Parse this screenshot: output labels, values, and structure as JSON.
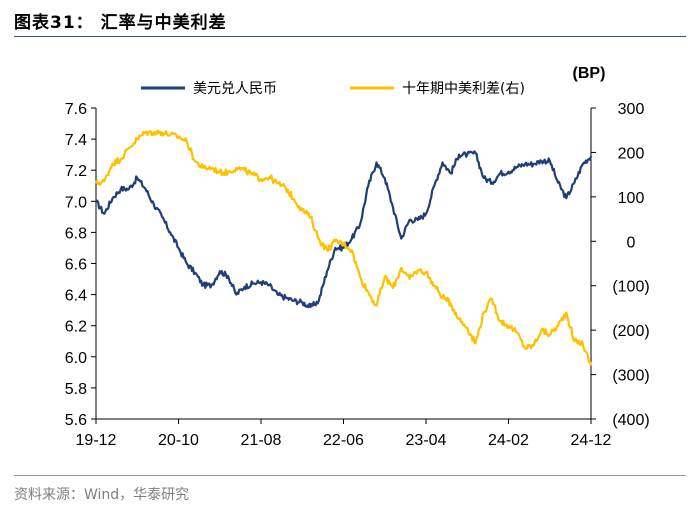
{
  "figure": {
    "title": "图表31：  汇率与中美利差",
    "source": "资料来源：Wind，华泰研究"
  },
  "chart_data": {
    "type": "line",
    "x_tick_labels": [
      "19-12",
      "20-10",
      "21-08",
      "22-06",
      "23-04",
      "24-02",
      "24-12"
    ],
    "x_range": [
      "2019-12",
      "2024-12"
    ],
    "y_left": {
      "range": [
        5.6,
        7.6
      ],
      "ticks": [
        "7.6",
        "7.4",
        "7.2",
        "7.0",
        "6.8",
        "6.6",
        "6.4",
        "6.2",
        "6.0",
        "5.8",
        "5.6"
      ]
    },
    "y_right": {
      "range": [
        -400,
        300
      ],
      "unit_label": "(BP)",
      "ticks": [
        "300",
        "200",
        "100",
        "0",
        "(100)",
        "(200)",
        "(300)",
        "(400)"
      ]
    },
    "legend_position": "top",
    "series": [
      {
        "name": "美元兑人民币",
        "axis": "left",
        "color": "#1f3f77",
        "points": [
          [
            "2019-12",
            7.0
          ],
          [
            "2020-01",
            6.92
          ],
          [
            "2020-02",
            7.02
          ],
          [
            "2020-03",
            7.08
          ],
          [
            "2020-04",
            7.08
          ],
          [
            "2020-05",
            7.15
          ],
          [
            "2020-06",
            7.08
          ],
          [
            "2020-07",
            6.98
          ],
          [
            "2020-08",
            6.9
          ],
          [
            "2020-09",
            6.8
          ],
          [
            "2020-10",
            6.7
          ],
          [
            "2020-11",
            6.6
          ],
          [
            "2020-12",
            6.54
          ],
          [
            "2021-01",
            6.46
          ],
          [
            "2021-02",
            6.46
          ],
          [
            "2021-03",
            6.55
          ],
          [
            "2021-04",
            6.52
          ],
          [
            "2021-05",
            6.4
          ],
          [
            "2021-06",
            6.45
          ],
          [
            "2021-07",
            6.47
          ],
          [
            "2021-08",
            6.48
          ],
          [
            "2021-09",
            6.46
          ],
          [
            "2021-10",
            6.4
          ],
          [
            "2021-11",
            6.38
          ],
          [
            "2021-12",
            6.36
          ],
          [
            "2022-01",
            6.35
          ],
          [
            "2022-02",
            6.32
          ],
          [
            "2022-03",
            6.36
          ],
          [
            "2022-04",
            6.55
          ],
          [
            "2022-05",
            6.7
          ],
          [
            "2022-06",
            6.7
          ],
          [
            "2022-07",
            6.76
          ],
          [
            "2022-08",
            6.85
          ],
          [
            "2022-09",
            7.1
          ],
          [
            "2022-10",
            7.25
          ],
          [
            "2022-11",
            7.15
          ],
          [
            "2022-12",
            6.96
          ],
          [
            "2023-01",
            6.76
          ],
          [
            "2023-02",
            6.88
          ],
          [
            "2023-03",
            6.88
          ],
          [
            "2023-04",
            6.92
          ],
          [
            "2023-05",
            7.1
          ],
          [
            "2023-06",
            7.25
          ],
          [
            "2023-07",
            7.18
          ],
          [
            "2023-08",
            7.3
          ],
          [
            "2023-09",
            7.3
          ],
          [
            "2023-10",
            7.31
          ],
          [
            "2023-11",
            7.15
          ],
          [
            "2023-12",
            7.12
          ],
          [
            "2024-01",
            7.18
          ],
          [
            "2024-02",
            7.19
          ],
          [
            "2024-03",
            7.22
          ],
          [
            "2024-04",
            7.24
          ],
          [
            "2024-05",
            7.24
          ],
          [
            "2024-06",
            7.26
          ],
          [
            "2024-07",
            7.26
          ],
          [
            "2024-08",
            7.12
          ],
          [
            "2024-09",
            7.02
          ],
          [
            "2024-10",
            7.12
          ],
          [
            "2024-11",
            7.24
          ],
          [
            "2024-12",
            7.29
          ]
        ]
      },
      {
        "name": "十年期中美利差(右)",
        "axis": "right",
        "color": "#ffc000",
        "points": [
          [
            "2019-12",
            130
          ],
          [
            "2020-01",
            135
          ],
          [
            "2020-02",
            175
          ],
          [
            "2020-03",
            185
          ],
          [
            "2020-04",
            210
          ],
          [
            "2020-05",
            230
          ],
          [
            "2020-06",
            245
          ],
          [
            "2020-07",
            245
          ],
          [
            "2020-08",
            245
          ],
          [
            "2020-09",
            240
          ],
          [
            "2020-10",
            235
          ],
          [
            "2020-11",
            225
          ],
          [
            "2020-12",
            180
          ],
          [
            "2021-01",
            165
          ],
          [
            "2021-02",
            165
          ],
          [
            "2021-03",
            155
          ],
          [
            "2021-04",
            155
          ],
          [
            "2021-05",
            165
          ],
          [
            "2021-06",
            160
          ],
          [
            "2021-07",
            150
          ],
          [
            "2021-08",
            140
          ],
          [
            "2021-09",
            145
          ],
          [
            "2021-10",
            130
          ],
          [
            "2021-11",
            120
          ],
          [
            "2021-12",
            95
          ],
          [
            "2022-01",
            70
          ],
          [
            "2022-02",
            55
          ],
          [
            "2022-03",
            5
          ],
          [
            "2022-04",
            -20
          ],
          [
            "2022-05",
            0
          ],
          [
            "2022-06",
            -5
          ],
          [
            "2022-07",
            -20
          ],
          [
            "2022-08",
            -80
          ],
          [
            "2022-09",
            -115
          ],
          [
            "2022-10",
            -145
          ],
          [
            "2022-11",
            -80
          ],
          [
            "2022-12",
            -105
          ],
          [
            "2023-01",
            -60
          ],
          [
            "2023-02",
            -85
          ],
          [
            "2023-03",
            -65
          ],
          [
            "2023-04",
            -70
          ],
          [
            "2023-05",
            -100
          ],
          [
            "2023-06",
            -125
          ],
          [
            "2023-07",
            -140
          ],
          [
            "2023-08",
            -175
          ],
          [
            "2023-09",
            -195
          ],
          [
            "2023-10",
            -230
          ],
          [
            "2023-11",
            -160
          ],
          [
            "2023-12",
            -130
          ],
          [
            "2024-01",
            -180
          ],
          [
            "2024-02",
            -190
          ],
          [
            "2024-03",
            -205
          ],
          [
            "2024-04",
            -240
          ],
          [
            "2024-05",
            -235
          ],
          [
            "2024-06",
            -200
          ],
          [
            "2024-07",
            -210
          ],
          [
            "2024-08",
            -190
          ],
          [
            "2024-09",
            -160
          ],
          [
            "2024-10",
            -225
          ],
          [
            "2024-11",
            -230
          ],
          [
            "2024-12",
            -280
          ]
        ]
      }
    ]
  }
}
